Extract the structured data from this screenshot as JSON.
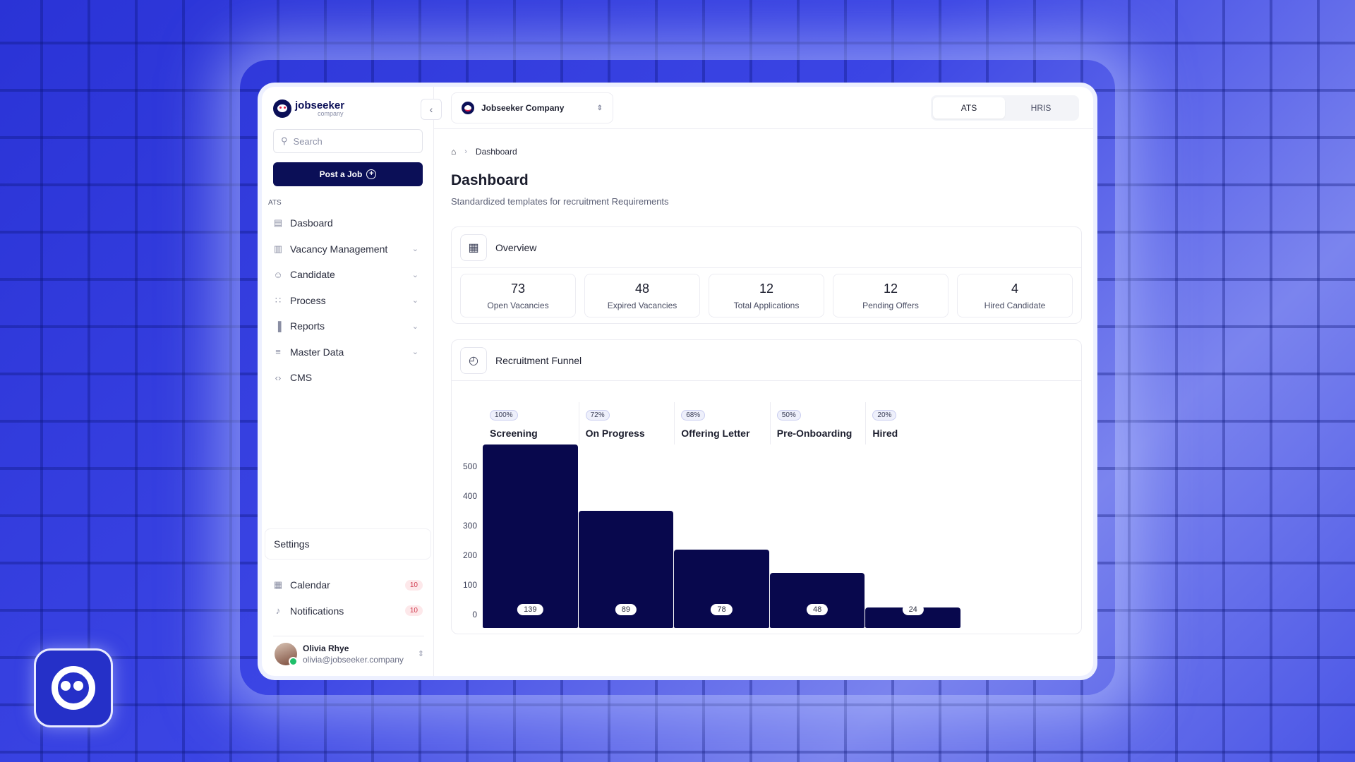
{
  "brand": {
    "name": "jobseeker",
    "sub": "company"
  },
  "sidebar": {
    "search_placeholder": "Search",
    "post_job_label": "Post a Job",
    "section_label": "ATS",
    "items": [
      {
        "label": "Dasboard",
        "icon": "layout-icon",
        "chevron": false
      },
      {
        "label": "Vacancy Management",
        "icon": "briefcase-icon",
        "chevron": true
      },
      {
        "label": "Candidate",
        "icon": "user-icon",
        "chevron": true
      },
      {
        "label": "Process",
        "icon": "flow-icon",
        "chevron": true
      },
      {
        "label": "Reports",
        "icon": "chart-icon",
        "chevron": true
      },
      {
        "label": "Master Data",
        "icon": "sliders-icon",
        "chevron": true
      },
      {
        "label": "CMS",
        "icon": "code-icon",
        "chevron": false
      }
    ],
    "settings_label": "Settings",
    "bottom_items": [
      {
        "label": "Calendar",
        "icon": "calendar-icon",
        "badge": "10"
      },
      {
        "label": "Notifications",
        "icon": "bell-icon",
        "badge": "10"
      }
    ],
    "user": {
      "name": "Olivia Rhye",
      "email": "olivia@jobseeker.company"
    }
  },
  "topbar": {
    "company": "Jobseeker Company",
    "modes": [
      "ATS",
      "HRIS"
    ],
    "active_mode": "ATS"
  },
  "breadcrumb": {
    "current": "Dashboard"
  },
  "page": {
    "title": "Dashboard",
    "subtitle": "Standardized templates for recruitment Requirements"
  },
  "overview": {
    "title": "Overview",
    "stats": [
      {
        "value": "73",
        "label": "Open Vacancies"
      },
      {
        "value": "48",
        "label": "Expired Vacancies"
      },
      {
        "value": "12",
        "label": "Total Applications"
      },
      {
        "value": "12",
        "label": "Pending Offers"
      },
      {
        "value": "4",
        "label": "Hired Candidate"
      }
    ]
  },
  "funnel": {
    "title": "Recruitment Funnel",
    "y_ticks": [
      "500",
      "400",
      "300",
      "200",
      "100",
      "0"
    ],
    "y_max": 500,
    "stages": [
      {
        "name": "Screening",
        "pct": "100%",
        "value": 500,
        "label": "139"
      },
      {
        "name": "On Progress",
        "pct": "72%",
        "value": 320,
        "label": "89"
      },
      {
        "name": "Offering Letter",
        "pct": "68%",
        "value": 213,
        "label": "78"
      },
      {
        "name": "Pre-Onboarding",
        "pct": "50%",
        "value": 150,
        "label": "48"
      },
      {
        "name": "Hired",
        "pct": "20%",
        "value": 56,
        "label": "24"
      }
    ]
  },
  "colors": {
    "primary": "#0b0f57",
    "bar": "#08084d",
    "badge_text": "#d03a4e"
  }
}
